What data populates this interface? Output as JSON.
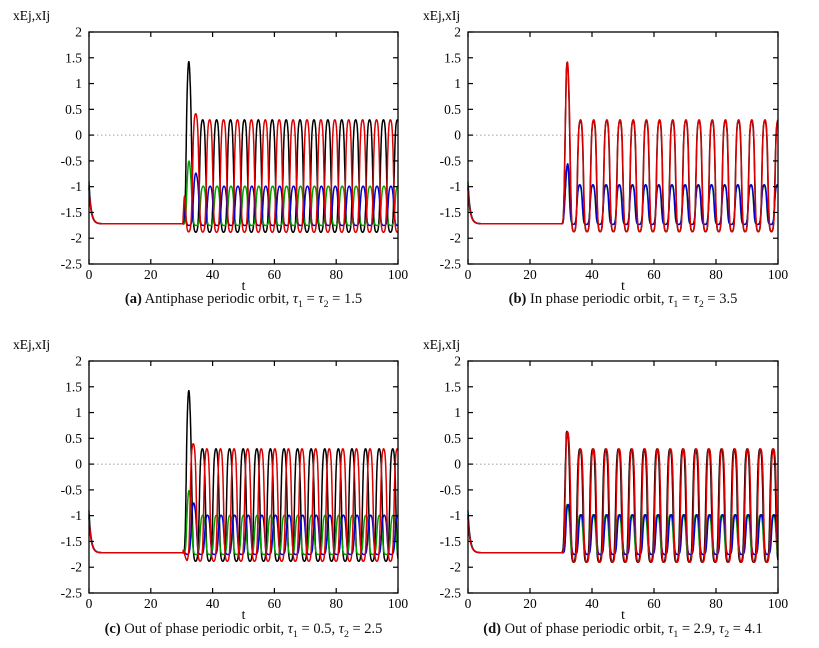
{
  "page": {
    "background": "#ffffff"
  },
  "axes_template": {
    "ylabel": "xEj,xIj",
    "xlabel": "t",
    "xlim": [
      0,
      100
    ],
    "ylim": [
      -2.5,
      2
    ],
    "x_ticks": [
      0,
      20,
      40,
      60,
      80,
      100
    ],
    "y_ticks": [
      2,
      1.5,
      1,
      0.5,
      0,
      -0.5,
      -1,
      -1.5,
      -2,
      -2.5
    ],
    "y_tick_labels": [
      "2",
      "1.5",
      "1",
      "0.5",
      "0",
      "-0.5",
      "-1",
      "-1.5",
      "-2",
      "-2.5"
    ],
    "grid": false,
    "zero_line": 0,
    "frame_color": "#000000",
    "zero_line_color": "#808080",
    "legend": "none"
  },
  "chart_data": [
    {
      "id": "a",
      "type": "line",
      "caption_parts": [
        [
          "(a)",
          "b"
        ],
        [
          " Antiphase periodic orbit, ",
          ""
        ],
        [
          "τ",
          "i"
        ],
        [
          "1",
          "s"
        ],
        [
          " = ",
          ""
        ],
        [
          "τ",
          "i"
        ],
        [
          "2",
          "s"
        ],
        [
          " = 1.5",
          ""
        ]
      ],
      "model": {
        "baseline": -1.72,
        "decay_tau": 0.7,
        "onset": 30.4,
        "period": 4.5,
        "series": [
          {
            "name": "black",
            "color": "#000000",
            "y0": -1.02,
            "min": -1.93,
            "max": 0.42,
            "first_peak": 32.3,
            "spike_t": 32.3,
            "spike_amp": 1.13,
            "spike_sigma": 0.55,
            "shape_c": 0.15,
            "shape_k": 3.4
          },
          {
            "name": "green",
            "color": "#00a000",
            "y0": -0.9,
            "min": -1.76,
            "max": -0.93,
            "first_peak": 32.45,
            "spike_t": 32.35,
            "spike_amp": 0.49,
            "spike_sigma": 0.5,
            "shape_c": 0.3,
            "shape_k": 3.6
          },
          {
            "name": "blue",
            "color": "#0000cc",
            "y0": -0.97,
            "min": -1.76,
            "max": -0.93,
            "first_peak": 34.7,
            "spike_t": 34.5,
            "spike_amp": 0.26,
            "spike_sigma": 0.6,
            "shape_c": 0.3,
            "shape_k": 3.6
          },
          {
            "name": "red",
            "color": "#dd0000",
            "y0": -1.04,
            "min": -1.93,
            "max": 0.42,
            "first_peak": 34.55,
            "spike_t": 34.4,
            "spike_amp": 0.12,
            "spike_sigma": 0.9,
            "shape_c": 0.15,
            "shape_k": 3.4
          }
        ]
      }
    },
    {
      "id": "b",
      "type": "line",
      "caption_parts": [
        [
          "(b)",
          "b"
        ],
        [
          " In phase periodic orbit, ",
          ""
        ],
        [
          "τ",
          "i"
        ],
        [
          "1",
          "s"
        ],
        [
          " = ",
          ""
        ],
        [
          "τ",
          "i"
        ],
        [
          "2",
          "s"
        ],
        [
          " = 3.5",
          ""
        ]
      ],
      "model": {
        "baseline": -1.72,
        "decay_tau": 0.7,
        "onset": 30.4,
        "period": 4.25,
        "series": [
          {
            "name": "black",
            "color": "#000000",
            "y0": -1.02,
            "min": -1.92,
            "max": 0.4,
            "first_peak": 32.0,
            "spike_t": 32.0,
            "spike_amp": 1.13,
            "spike_sigma": 0.55,
            "shape_c": 0.15,
            "shape_k": 3.4
          },
          {
            "name": "green",
            "color": "#00a000",
            "y0": -0.9,
            "min": -1.74,
            "max": -0.92,
            "first_peak": 31.75,
            "spike_t": 32.2,
            "spike_amp": 0.44,
            "spike_sigma": 0.5,
            "shape_c": 0.3,
            "shape_k": 3.6
          },
          {
            "name": "blue",
            "color": "#0000cc",
            "y0": -0.97,
            "min": -1.74,
            "max": -0.9,
            "first_peak": 31.8,
            "spike_t": 32.3,
            "spike_amp": 0.46,
            "spike_sigma": 0.5,
            "shape_c": 0.3,
            "shape_k": 3.6
          },
          {
            "name": "red",
            "color": "#dd0000",
            "y0": -1.04,
            "min": -1.92,
            "max": 0.42,
            "first_peak": 32.05,
            "spike_t": 32.05,
            "spike_amp": 1.12,
            "spike_sigma": 0.55,
            "shape_c": 0.15,
            "shape_k": 3.4
          }
        ]
      }
    },
    {
      "id": "c",
      "type": "line",
      "caption_parts": [
        [
          "(c)",
          "b"
        ],
        [
          " Out of phase periodic orbit, ",
          ""
        ],
        [
          "τ",
          "i"
        ],
        [
          "1",
          "s"
        ],
        [
          " = 0.5, ",
          ""
        ],
        [
          "τ",
          "i"
        ],
        [
          "2",
          "s"
        ],
        [
          " = 2.5",
          ""
        ]
      ],
      "model": {
        "baseline": -1.72,
        "decay_tau": 0.7,
        "onset": 30.4,
        "period": 4.4,
        "series": [
          {
            "name": "black",
            "color": "#000000",
            "y0": -1.02,
            "min": -1.93,
            "max": 0.42,
            "first_peak": 32.3,
            "spike_t": 32.3,
            "spike_amp": 1.13,
            "spike_sigma": 0.55,
            "shape_c": 0.15,
            "shape_k": 3.4
          },
          {
            "name": "green",
            "color": "#00a000",
            "y0": -0.9,
            "min": -1.76,
            "max": -0.93,
            "first_peak": 32.45,
            "spike_t": 32.35,
            "spike_amp": 0.48,
            "spike_sigma": 0.5,
            "shape_c": 0.3,
            "shape_k": 3.6
          },
          {
            "name": "blue",
            "color": "#0000cc",
            "y0": -0.97,
            "min": -1.76,
            "max": -0.93,
            "first_peak": 33.95,
            "spike_t": 33.8,
            "spike_amp": 0.24,
            "spike_sigma": 0.6,
            "shape_c": 0.3,
            "shape_k": 3.6
          },
          {
            "name": "red",
            "color": "#dd0000",
            "y0": -1.04,
            "min": -1.93,
            "max": 0.42,
            "first_peak": 33.75,
            "spike_t": 33.6,
            "spike_amp": 0.1,
            "spike_sigma": 0.9,
            "shape_c": 0.15,
            "shape_k": 3.4
          }
        ]
      }
    },
    {
      "id": "d",
      "type": "line",
      "caption_parts": [
        [
          "(d)",
          "b"
        ],
        [
          " Out of phase periodic orbit, ",
          ""
        ],
        [
          "τ",
          "i"
        ],
        [
          "1",
          "s"
        ],
        [
          " = 2.9, ",
          ""
        ],
        [
          "τ",
          "i"
        ],
        [
          "2",
          "s"
        ],
        [
          " = 4.1",
          ""
        ]
      ],
      "model": {
        "baseline": -1.72,
        "decay_tau": 0.7,
        "onset": 30.4,
        "period": 4.15,
        "series": [
          {
            "name": "black",
            "color": "#000000",
            "y0": -1.02,
            "min": -1.95,
            "max": 0.42,
            "first_peak": 31.95,
            "spike_t": 31.9,
            "spike_amp": 0.34,
            "spike_sigma": 0.65,
            "shape_c": 0.15,
            "shape_k": 3.4
          },
          {
            "name": "green",
            "color": "#00a000",
            "y0": -0.9,
            "min": -1.76,
            "max": -0.92,
            "first_peak": 32.1,
            "spike_t": 32.0,
            "spike_amp": 0.2,
            "spike_sigma": 0.55,
            "shape_c": 0.3,
            "shape_k": 3.6
          },
          {
            "name": "blue",
            "color": "#0000cc",
            "y0": -0.97,
            "min": -1.76,
            "max": -0.92,
            "first_peak": 32.35,
            "spike_t": 32.25,
            "spike_amp": 0.2,
            "spike_sigma": 0.55,
            "shape_c": 0.3,
            "shape_k": 3.6
          },
          {
            "name": "red",
            "color": "#dd0000",
            "y0": -1.04,
            "min": -1.95,
            "max": 0.42,
            "first_peak": 32.15,
            "spike_t": 32.1,
            "spike_amp": 0.33,
            "spike_sigma": 0.65,
            "shape_c": 0.15,
            "shape_k": 3.4
          }
        ]
      }
    }
  ]
}
